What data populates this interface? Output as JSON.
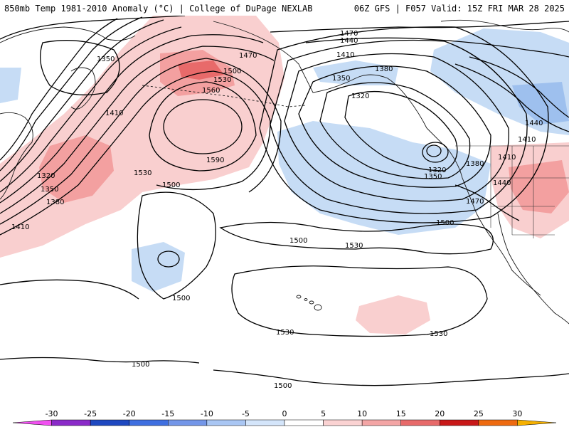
{
  "header": {
    "title_left": "850mb Temp 1981-2010 Anomaly (°C) | College of DuPage NEXLAB",
    "title_right": "06Z GFS | F057 Valid: 15Z FRI MAR 28 2025"
  },
  "colors": {
    "cold_fill_light": "#c6dcf5",
    "cold_fill_mid": "#9ec0ee",
    "cold_fill_strong": "#6f98e0",
    "warm_fill_light": "#f9cfcf",
    "warm_fill_mid": "#f3a0a0",
    "warm_fill_strong": "#e86a6a"
  },
  "contour_labels": [
    {
      "id": "c1470-top",
      "text": "1470"
    },
    {
      "id": "c1440-top",
      "text": "1440"
    },
    {
      "id": "c1410-top",
      "text": "1410"
    },
    {
      "id": "c1380-top",
      "text": "1380"
    },
    {
      "id": "c1350-top",
      "text": "1350"
    },
    {
      "id": "c1320-top",
      "text": "1320"
    },
    {
      "id": "c1350-nw",
      "text": "1350"
    },
    {
      "id": "c1410-nw",
      "text": "1410"
    },
    {
      "id": "c1470-n",
      "text": "1470"
    },
    {
      "id": "c1500-n",
      "text": "1500"
    },
    {
      "id": "c1530-n",
      "text": "1530"
    },
    {
      "id": "c1560-n",
      "text": "1560"
    },
    {
      "id": "c1590",
      "text": "1590"
    },
    {
      "id": "c1530-w",
      "text": "1530"
    },
    {
      "id": "c1500-w",
      "text": "1500"
    },
    {
      "id": "c1320-w",
      "text": "1320"
    },
    {
      "id": "c1350-w",
      "text": "1350"
    },
    {
      "id": "c1380-w",
      "text": "1380"
    },
    {
      "id": "c1410-w",
      "text": "1410"
    },
    {
      "id": "c1500-c",
      "text": "1500"
    },
    {
      "id": "c1530-c",
      "text": "1530"
    },
    {
      "id": "c1500-sw",
      "text": "1500"
    },
    {
      "id": "c1530-s",
      "text": "1530"
    },
    {
      "id": "c1530-se",
      "text": "1530"
    },
    {
      "id": "c1500-se",
      "text": "1500"
    },
    {
      "id": "c1500-bl",
      "text": "1500"
    },
    {
      "id": "c1500-bc",
      "text": "1500"
    },
    {
      "id": "c1320-low",
      "text": "1320"
    },
    {
      "id": "c1350-low",
      "text": "1350"
    },
    {
      "id": "c1380-low",
      "text": "1380"
    },
    {
      "id": "c1410-e",
      "text": "1410"
    },
    {
      "id": "c1440-e",
      "text": "1440"
    },
    {
      "id": "c1470-e",
      "text": "1470"
    },
    {
      "id": "c1440-ne",
      "text": "1440"
    },
    {
      "id": "c1410-ne",
      "text": "1410"
    }
  ],
  "colorbar": {
    "ticks": [
      "-30",
      "-25",
      "-20",
      "-15",
      "-10",
      "-5",
      "0",
      "5",
      "10",
      "15",
      "20",
      "25",
      "30"
    ],
    "bins": [
      {
        "color": "#f050f0"
      },
      {
        "color": "#8a2ac8"
      },
      {
        "color": "#1e48c0"
      },
      {
        "color": "#3f6fe0"
      },
      {
        "color": "#7396e8"
      },
      {
        "color": "#a9c6f3"
      },
      {
        "color": "#d4e5fa"
      },
      {
        "color": "#ffffff"
      },
      {
        "color": "#fad2d2"
      },
      {
        "color": "#f3a5a5"
      },
      {
        "color": "#e76a6a"
      },
      {
        "color": "#c81818"
      },
      {
        "color": "#ee6a10"
      },
      {
        "color": "#f5b000"
      }
    ]
  }
}
